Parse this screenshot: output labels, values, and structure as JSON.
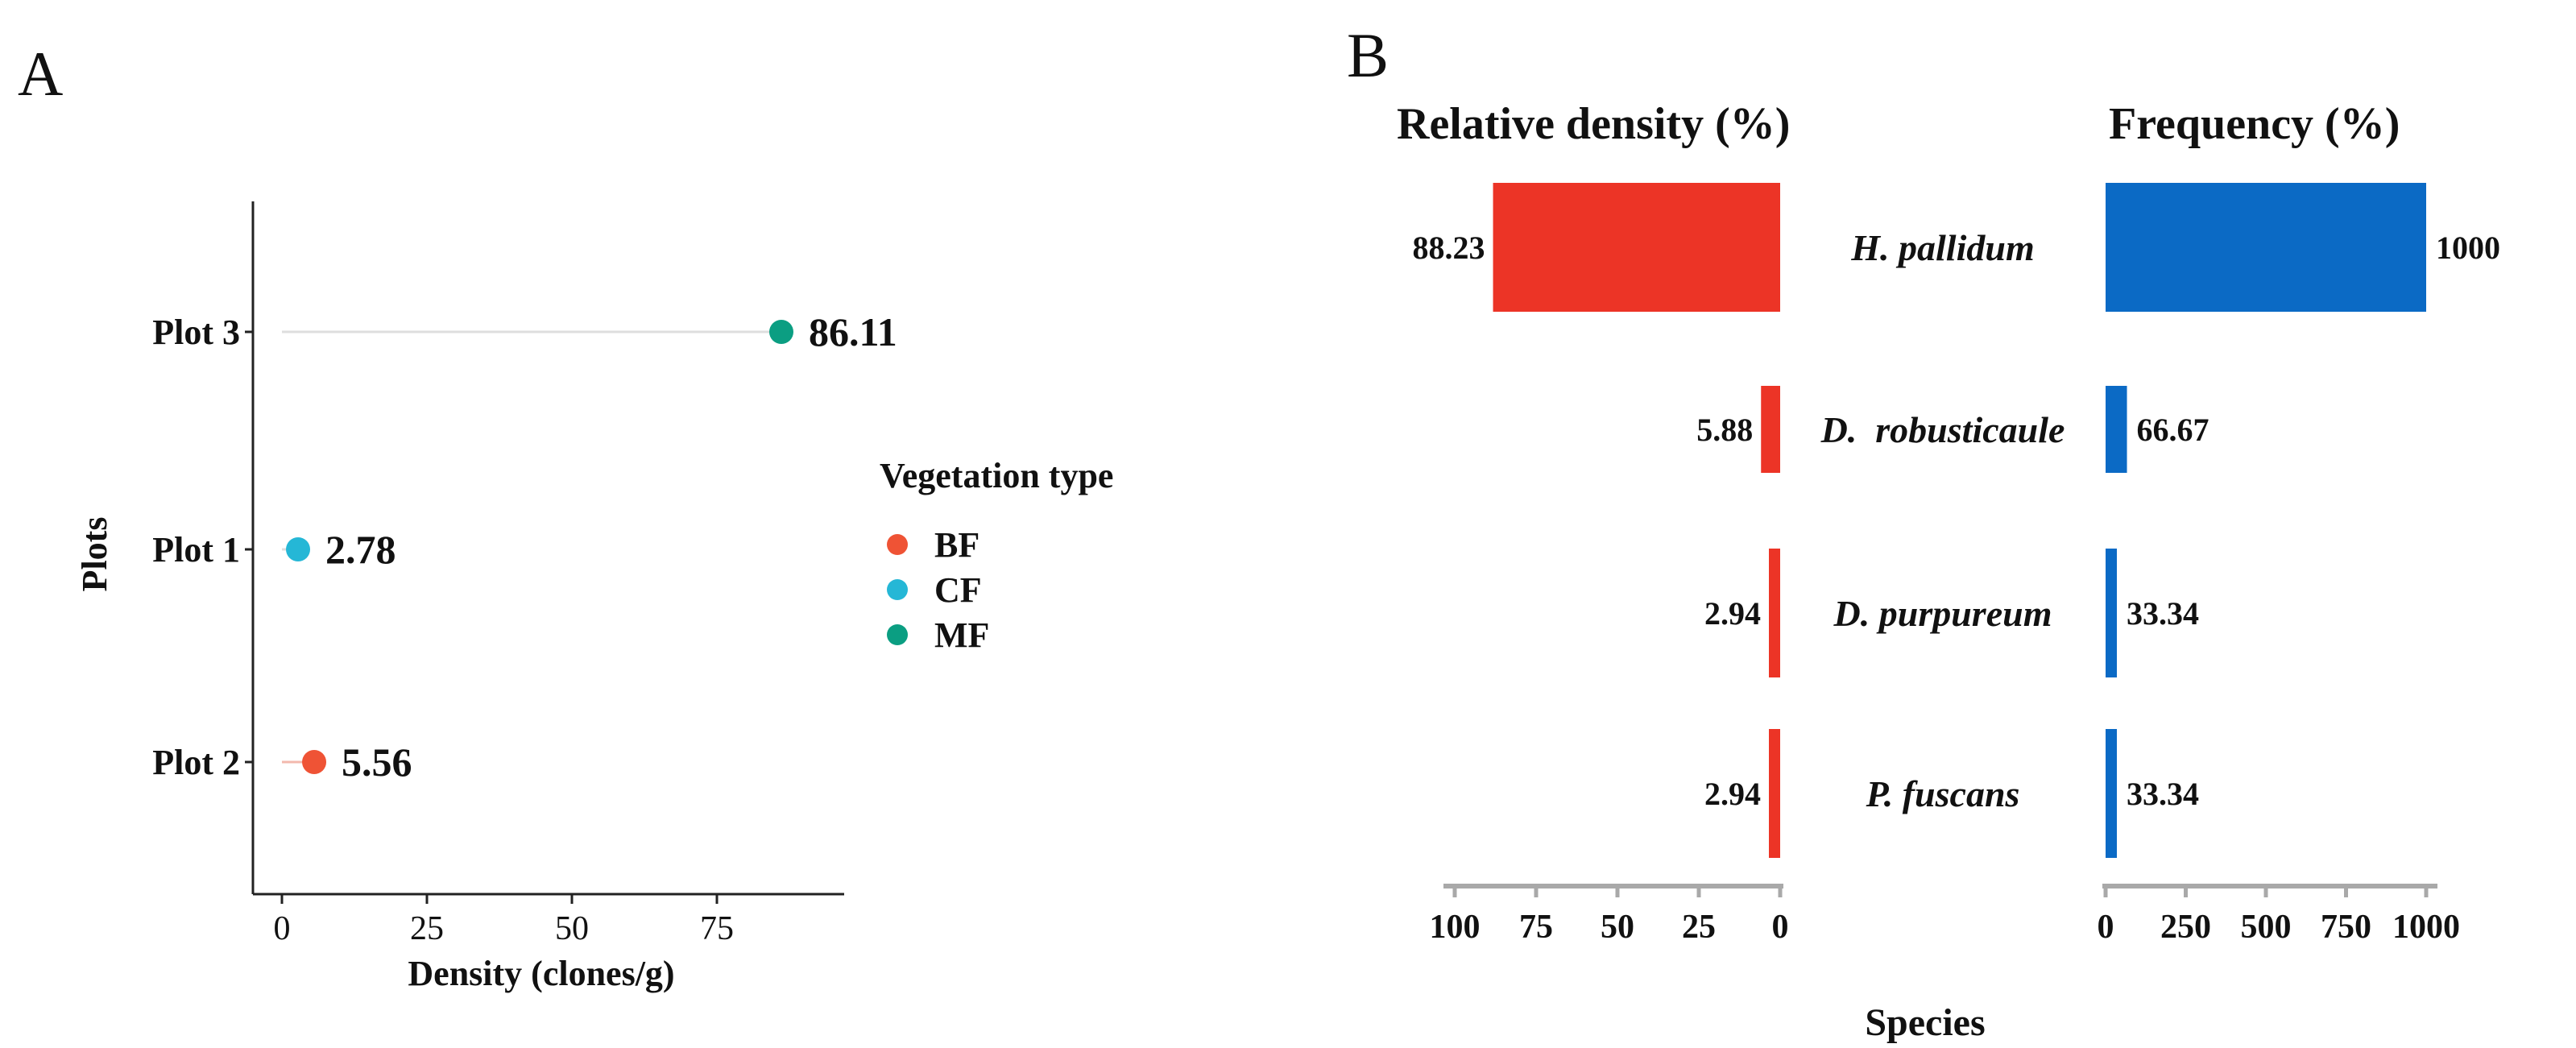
{
  "panels": {
    "a": {
      "letter": "A"
    },
    "b": {
      "letter": "B"
    }
  },
  "chart_data": [
    {
      "type": "scatter",
      "style": "lollipop",
      "xlabel": "Density (clones/g)",
      "ylabel": "Plots",
      "xlim": [
        0,
        95
      ],
      "xticks": [
        0,
        25,
        50,
        75
      ],
      "categories": [
        "Plot 3",
        "Plot 1",
        "Plot 2"
      ],
      "values": [
        86.11,
        2.78,
        5.56
      ],
      "value_labels": [
        "86.11",
        "2.78",
        "5.56"
      ],
      "point_groups": [
        "MF",
        "CF",
        "BF"
      ],
      "legend": {
        "title": "Vegetation type",
        "placement": "right",
        "entries": [
          {
            "name": "BF",
            "color": "#ef5335"
          },
          {
            "name": "CF",
            "color": "#25b7d6"
          },
          {
            "name": "MF",
            "color": "#0b9e82"
          }
        ]
      },
      "grid": false
    },
    {
      "type": "bar",
      "orientation": "horizontal",
      "layout": "back-to-back",
      "xlabel": "Species",
      "categories": [
        "H. pallidum",
        "D.  robusticaule",
        "D. purpureum",
        "P. fuscans"
      ],
      "series": [
        {
          "name": "Relative density (%)",
          "color": "#ec3426",
          "direction": "left",
          "values": [
            88.23,
            5.88,
            2.94,
            2.94
          ],
          "value_labels": [
            "88.23",
            "5.88",
            "2.94",
            "2.94"
          ],
          "axis_max": 100,
          "ticks": [
            100,
            75,
            50,
            25,
            0
          ]
        },
        {
          "name": "Frequency (%)",
          "color": "#0b6ac5",
          "direction": "right",
          "values": [
            1000,
            66.67,
            33.34,
            33.34
          ],
          "value_labels": [
            "1000",
            "66.67",
            "33.34",
            "33.34"
          ],
          "axis_max": 1000,
          "ticks": [
            0,
            250,
            500,
            750,
            1000
          ]
        }
      ],
      "grid": false
    }
  ]
}
